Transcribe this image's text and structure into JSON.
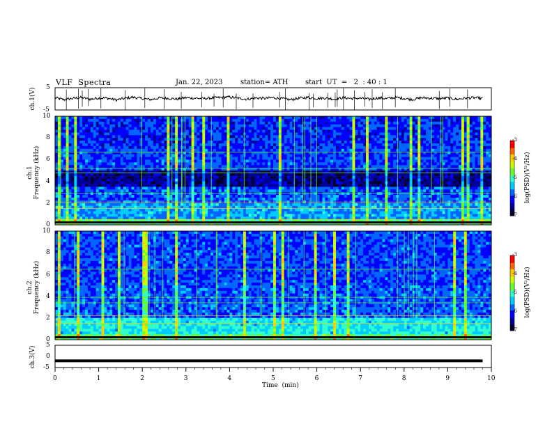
{
  "header": {
    "title": "VLF  Spectra",
    "date": "Jan. 22, 2023",
    "station": "station= ATH",
    "start": "start  UT  =   2  : 40 : 1"
  },
  "colors": {
    "trace": "#000000",
    "colormap": [
      "#000033",
      "#000099",
      "#0000ff",
      "#0066ff",
      "#00ccff",
      "#33ffcc",
      "#66ff33",
      "#ccff00",
      "#ffcc00",
      "#ff6600",
      "#ff0000",
      "#ffffff"
    ]
  },
  "chart_data": [
    {
      "type": "line",
      "ylabel": "ch.1(V)",
      "ylim": [
        -5,
        5
      ],
      "yticks": [
        "5",
        "-5"
      ],
      "description_series": "ch.1 waveform",
      "x": [
        0,
        0.2,
        0.4,
        0.6,
        0.8,
        1,
        1.2,
        1.4,
        1.6,
        1.8,
        2,
        2.2,
        2.4,
        2.6,
        2.8,
        3,
        3.2,
        3.4,
        3.6,
        3.8,
        4,
        4.2,
        4.4,
        4.6,
        4.8,
        5,
        5.2,
        5.4,
        5.6,
        5.8,
        6,
        6.2,
        6.4,
        6.6,
        6.8,
        7,
        7.2,
        7.4,
        7.6,
        7.8,
        8,
        8.2,
        8.4,
        8.6,
        8.8,
        9,
        9.2,
        9.4,
        9.6,
        9.8
      ],
      "y": [
        0.5,
        -0.4,
        0.2,
        0.6,
        -0.2,
        0.4,
        0.3,
        -0.5,
        0.2,
        0.7,
        0.1,
        -0.3,
        0.4,
        0.2,
        -0.1,
        0.5,
        0.3,
        0.1,
        0.4,
        0.6,
        0.8,
        0.3,
        -0.2,
        0.4,
        0.2,
        0.5,
        0.1,
        -0.4,
        0.3,
        0.6,
        0.2,
        0.4,
        -0.1,
        0.5,
        0.2,
        0.3,
        -0.2,
        0.4,
        0.1,
        0.6,
        0.2,
        -0.3,
        0.5,
        0.3,
        0.1,
        0.4,
        -0.2,
        0.3,
        0.5,
        0.2
      ]
    },
    {
      "type": "heatmap",
      "ylabel": "ch.1\nFrequency  (kHz)",
      "ylim": [
        0,
        10
      ],
      "yticks": [
        "0",
        "2",
        "4",
        "6",
        "8",
        "10"
      ],
      "colorbar": {
        "label": "log(PSD)(V²/Hz)",
        "range": [
          -7,
          -3
        ],
        "ticks": [
          "-3",
          "-4",
          "-5",
          "-6",
          "-7"
        ]
      }
    },
    {
      "type": "heatmap",
      "ylabel": "ch.2\nFrequency  (kHz)",
      "ylim": [
        0,
        10
      ],
      "yticks": [
        "0",
        "2",
        "4",
        "6",
        "8",
        "10"
      ],
      "colorbar": {
        "label": "log(PSD)(V²/Hz)",
        "range": [
          -7,
          -3
        ],
        "ticks": [
          "-3",
          "-4",
          "-5",
          "-6",
          "-7"
        ]
      }
    },
    {
      "type": "line",
      "ylabel": "ch.3(V)",
      "ylim": [
        -5,
        5
      ],
      "yticks": [
        "5",
        "0",
        "-5"
      ],
      "x": [
        0,
        9.8
      ],
      "y": [
        -2,
        -2
      ]
    }
  ],
  "xaxis": {
    "label": "Time  (min)",
    "range": [
      0,
      10
    ],
    "ticks": [
      "0",
      "1",
      "2",
      "3",
      "4",
      "5",
      "6",
      "7",
      "8",
      "9",
      "10"
    ]
  }
}
